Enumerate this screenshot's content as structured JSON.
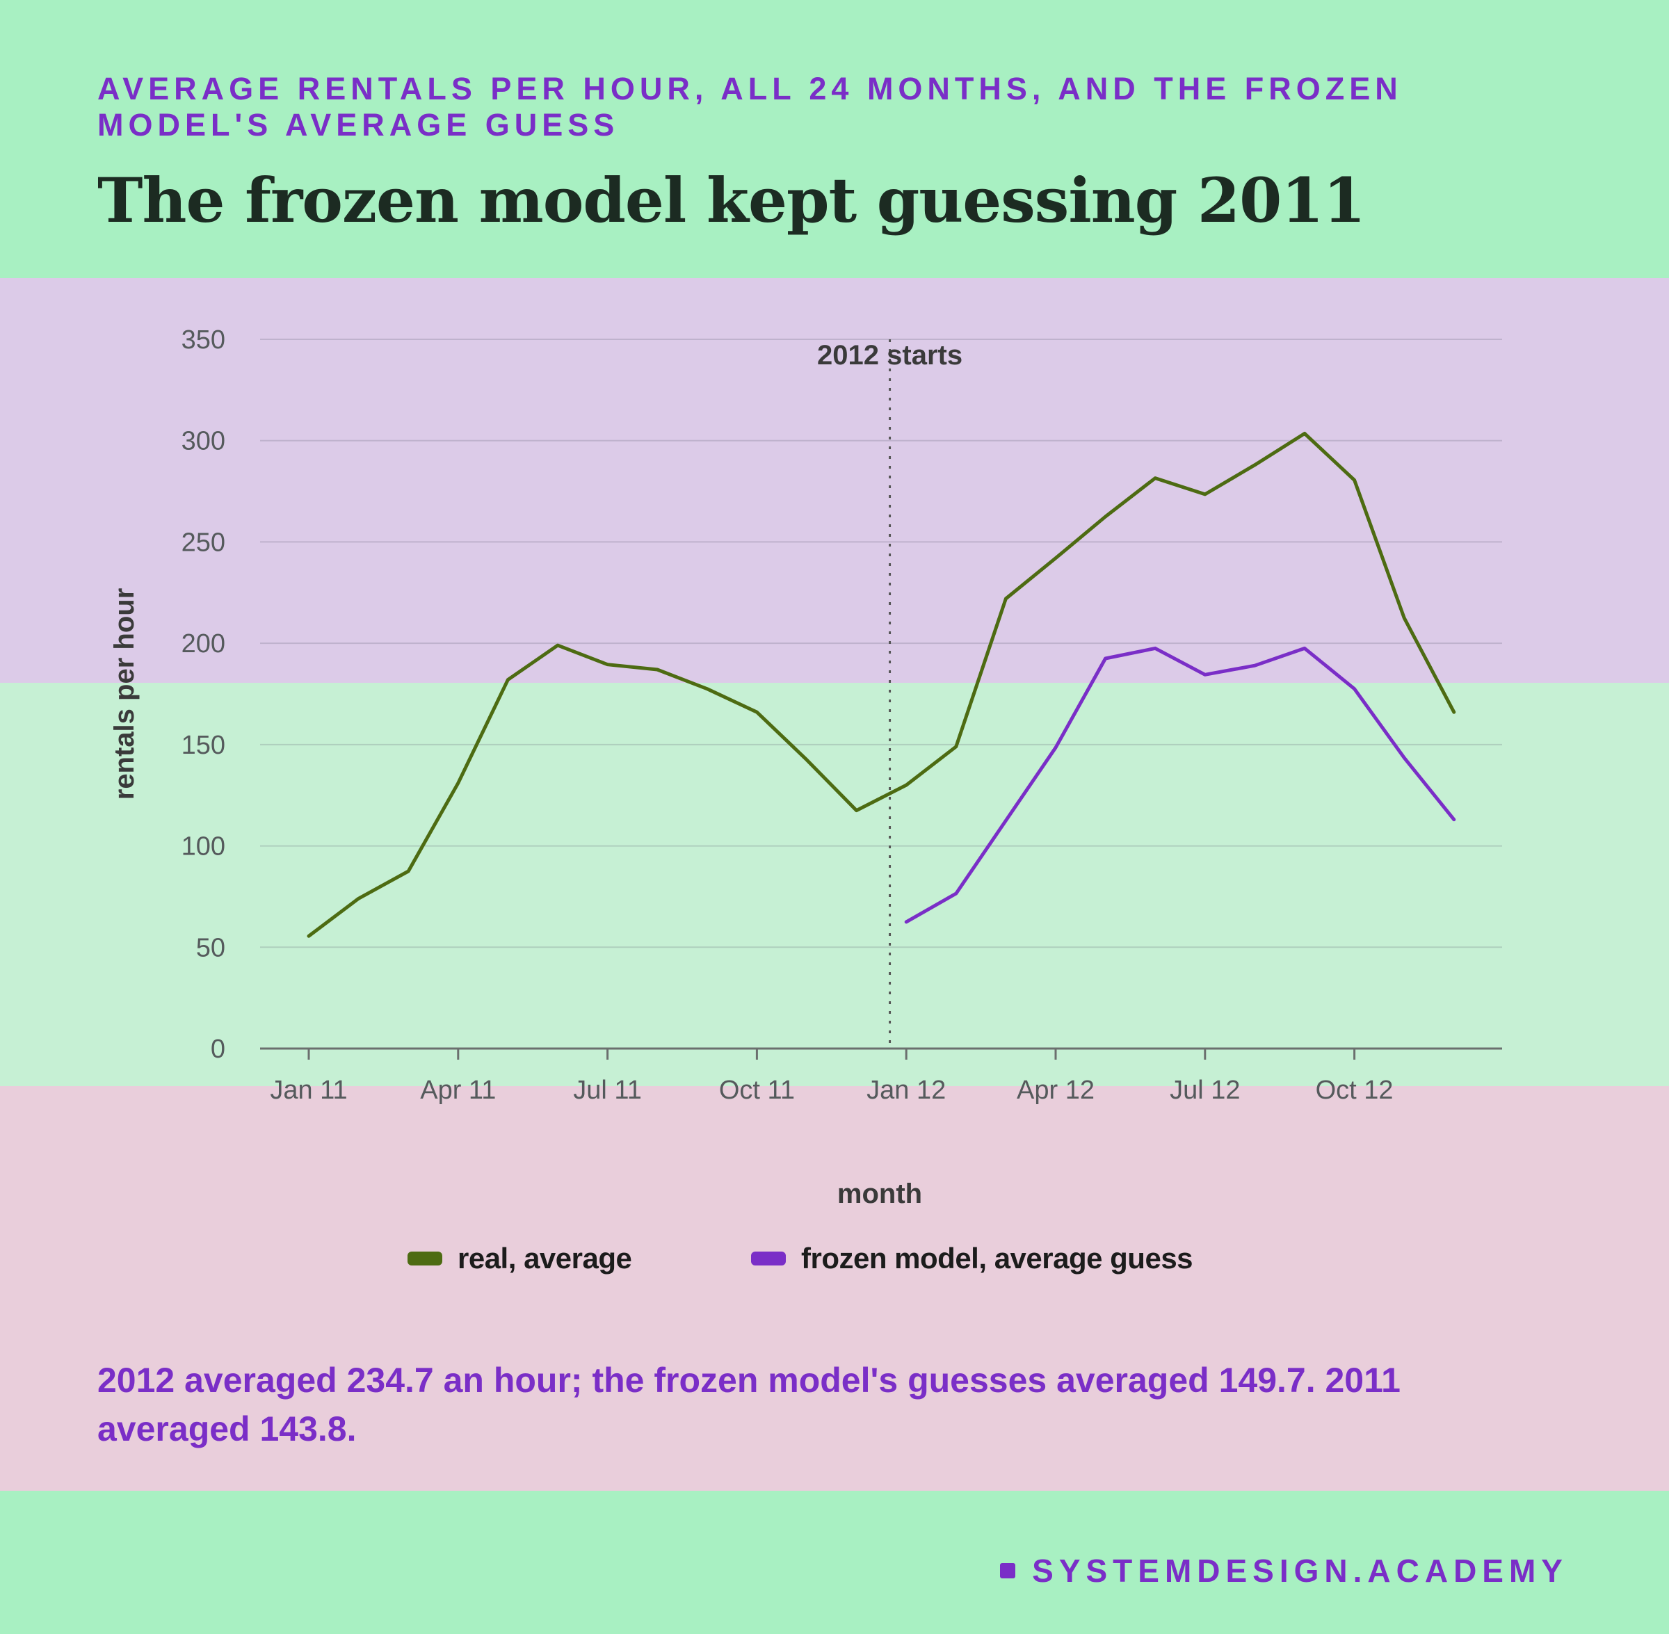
{
  "header": {
    "kicker": "AVERAGE RENTALS PER HOUR, ALL 24 MONTHS, AND THE FROZEN MODEL'S AVERAGE GUESS",
    "title": "The frozen model kept guessing 2011"
  },
  "chart_data": {
    "type": "line",
    "x": [
      "2011-01",
      "2011-02",
      "2011-03",
      "2011-04",
      "2011-05",
      "2011-06",
      "2011-07",
      "2011-08",
      "2011-09",
      "2011-10",
      "2011-11",
      "2011-12",
      "2012-01",
      "2012-02",
      "2012-03",
      "2012-04",
      "2012-05",
      "2012-06",
      "2012-07",
      "2012-08",
      "2012-09",
      "2012-10",
      "2012-11",
      "2012-12"
    ],
    "series": [
      {
        "name": "real, average",
        "color": "#4d6b12",
        "values": [
          55.5,
          74,
          87.5,
          131,
          182,
          199,
          189.5,
          187,
          177.5,
          166,
          142.5,
          117.5,
          130,
          149,
          222,
          242,
          262.5,
          281.5,
          273.5,
          288,
          303.5,
          280.5,
          212.5,
          166
        ]
      },
      {
        "name": "frozen model, average guess",
        "color": "#7a2ec7",
        "values": [
          null,
          null,
          null,
          null,
          null,
          null,
          null,
          null,
          null,
          null,
          null,
          null,
          62.5,
          76.5,
          112.5,
          148.5,
          192.5,
          197.5,
          184.5,
          189,
          197.5,
          177.5,
          143.5,
          113
        ]
      }
    ],
    "xlabel": "month",
    "ylabel": "rentals per hour",
    "ylim": [
      0,
      350
    ],
    "yticks": [
      0,
      50,
      100,
      150,
      200,
      250,
      300,
      350
    ],
    "xticks": [
      {
        "x": "2011-01",
        "label": "Jan 11"
      },
      {
        "x": "2011-04",
        "label": "Apr 11"
      },
      {
        "x": "2011-07",
        "label": "Jul 11"
      },
      {
        "x": "2011-10",
        "label": "Oct 11"
      },
      {
        "x": "2012-01",
        "label": "Jan 12"
      },
      {
        "x": "2012-04",
        "label": "Apr 12"
      },
      {
        "x": "2012-07",
        "label": "Jul 12"
      },
      {
        "x": "2012-10",
        "label": "Oct 12"
      }
    ],
    "annotation": {
      "x": "2011-12-16",
      "label": "2012 starts",
      "style": "dotted"
    },
    "grid": true,
    "legend": "bottom"
  },
  "takeaway": "2012 averaged 234.7 an hour; the frozen model's guesses averaged 149.7. 2011 averaged 143.8.",
  "brand": "SYSTEMDESIGN.ACADEMY"
}
